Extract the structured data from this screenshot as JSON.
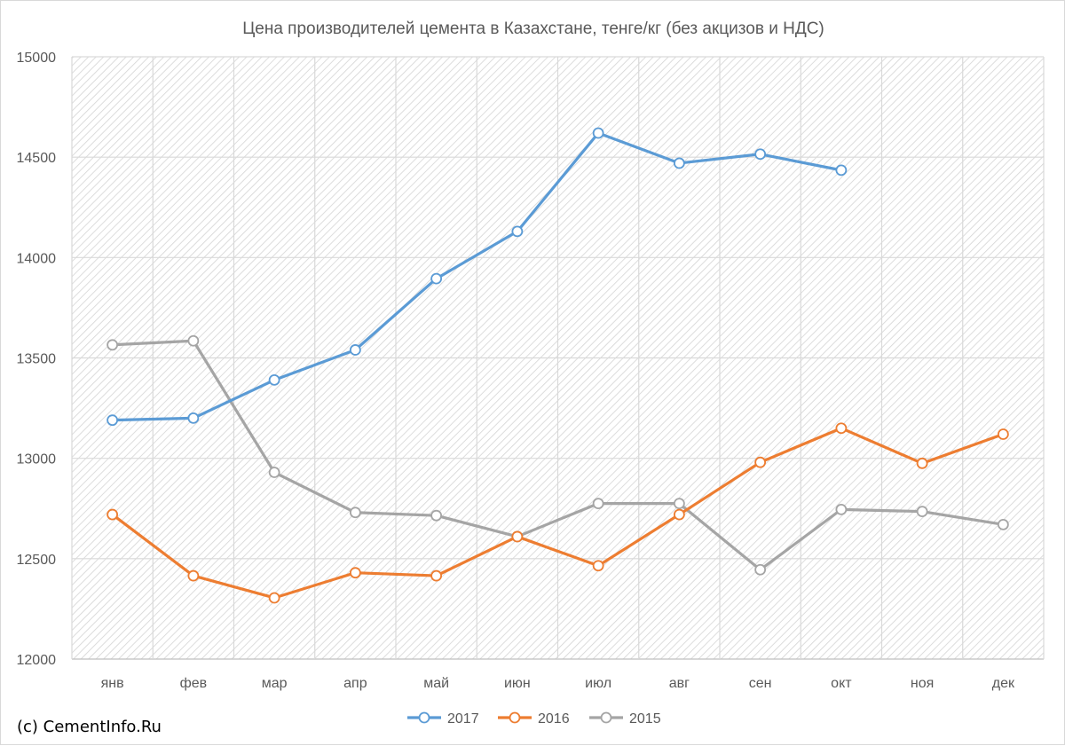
{
  "copyright": "(c) CementInfo.Ru",
  "chart_data": {
    "type": "line",
    "title": "Цена производителей цемента в Казахстане, тенге/кг (без акцизов и НДС)",
    "xlabel": "",
    "ylabel": "",
    "categories": [
      "янв",
      "фев",
      "мар",
      "апр",
      "май",
      "июн",
      "июл",
      "авг",
      "сен",
      "окт",
      "ноя",
      "дек"
    ],
    "ylim": [
      12000,
      15000
    ],
    "yticks": [
      12000,
      12500,
      13000,
      13500,
      14000,
      14500,
      15000
    ],
    "grid": true,
    "legend_position": "bottom",
    "series": [
      {
        "name": "2017",
        "color": "#5b9bd5",
        "values": [
          13190,
          13200,
          13390,
          13540,
          13895,
          14130,
          14620,
          14470,
          14515,
          14435,
          null,
          null
        ]
      },
      {
        "name": "2016",
        "color": "#ed7d31",
        "values": [
          12720,
          12415,
          12305,
          12430,
          12415,
          12610,
          12465,
          12720,
          12980,
          13150,
          12975,
          13120
        ]
      },
      {
        "name": "2015",
        "color": "#a5a5a5",
        "values": [
          13565,
          13585,
          12930,
          12730,
          12715,
          12610,
          12775,
          12775,
          12445,
          12745,
          12735,
          12670
        ]
      }
    ]
  }
}
